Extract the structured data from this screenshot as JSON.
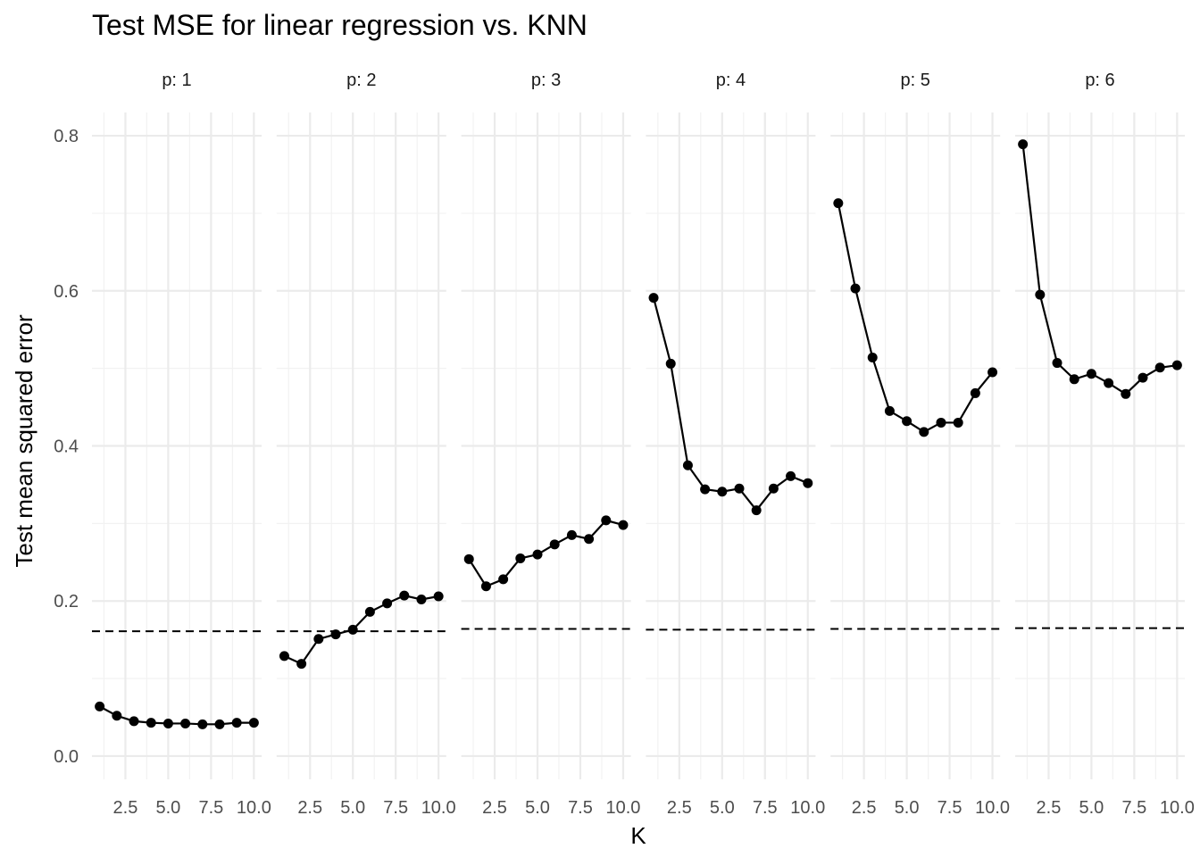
{
  "chart_data": {
    "type": "line",
    "title": "Test MSE for linear regression vs. KNN",
    "xlabel": "K",
    "ylabel": "Test mean squared error",
    "ylim": [
      -0.03,
      0.83
    ],
    "xlim": [
      0.55,
      10.45
    ],
    "x_ticks": [
      "2.5",
      "5.0",
      "7.5",
      "10.0"
    ],
    "x_tick_values": [
      2.5,
      5.0,
      7.5,
      10.0
    ],
    "y_ticks": [
      "0.0",
      "0.2",
      "0.4",
      "0.6",
      "0.8"
    ],
    "y_tick_values": [
      0.0,
      0.2,
      0.4,
      0.6,
      0.8
    ],
    "grid": true,
    "x": [
      1,
      2,
      3,
      4,
      5,
      6,
      7,
      8,
      9,
      10
    ],
    "panels": [
      {
        "label": "p: 1",
        "knn_mse": [
          0.064,
          0.052,
          0.045,
          0.043,
          0.042,
          0.042,
          0.041,
          0.041,
          0.043,
          0.043
        ],
        "linear_mse": [
          0.161,
          0.161
        ]
      },
      {
        "label": "p: 2",
        "knn_mse": [
          0.129,
          0.119,
          0.151,
          0.157,
          0.163,
          0.186,
          0.197,
          0.207,
          0.202,
          0.206
        ],
        "linear_mse": [
          0.161,
          0.161
        ]
      },
      {
        "label": "p: 3",
        "knn_mse": [
          0.254,
          0.219,
          0.228,
          0.255,
          0.26,
          0.273,
          0.285,
          0.28,
          0.304,
          0.298
        ],
        "linear_mse": [
          0.164,
          0.164
        ]
      },
      {
        "label": "p: 4",
        "knn_mse": [
          0.591,
          0.506,
          0.375,
          0.344,
          0.341,
          0.345,
          0.317,
          0.345,
          0.361,
          0.352
        ],
        "linear_mse": [
          0.163,
          0.163
        ]
      },
      {
        "label": "p: 5",
        "knn_mse": [
          0.713,
          0.603,
          0.514,
          0.445,
          0.432,
          0.418,
          0.43,
          0.43,
          0.468,
          0.495
        ],
        "linear_mse": [
          0.164,
          0.164
        ]
      },
      {
        "label": "p: 6",
        "knn_mse": [
          0.789,
          0.595,
          0.507,
          0.486,
          0.493,
          0.481,
          0.467,
          0.488,
          0.501,
          0.504
        ],
        "linear_mse": [
          0.165,
          0.165
        ]
      }
    ],
    "colors": {
      "line": "#000000",
      "grid_major": "#ebebeb",
      "grid_minor": "#f2f2f2",
      "text": "#4d4d4d",
      "title": "#000000"
    }
  }
}
